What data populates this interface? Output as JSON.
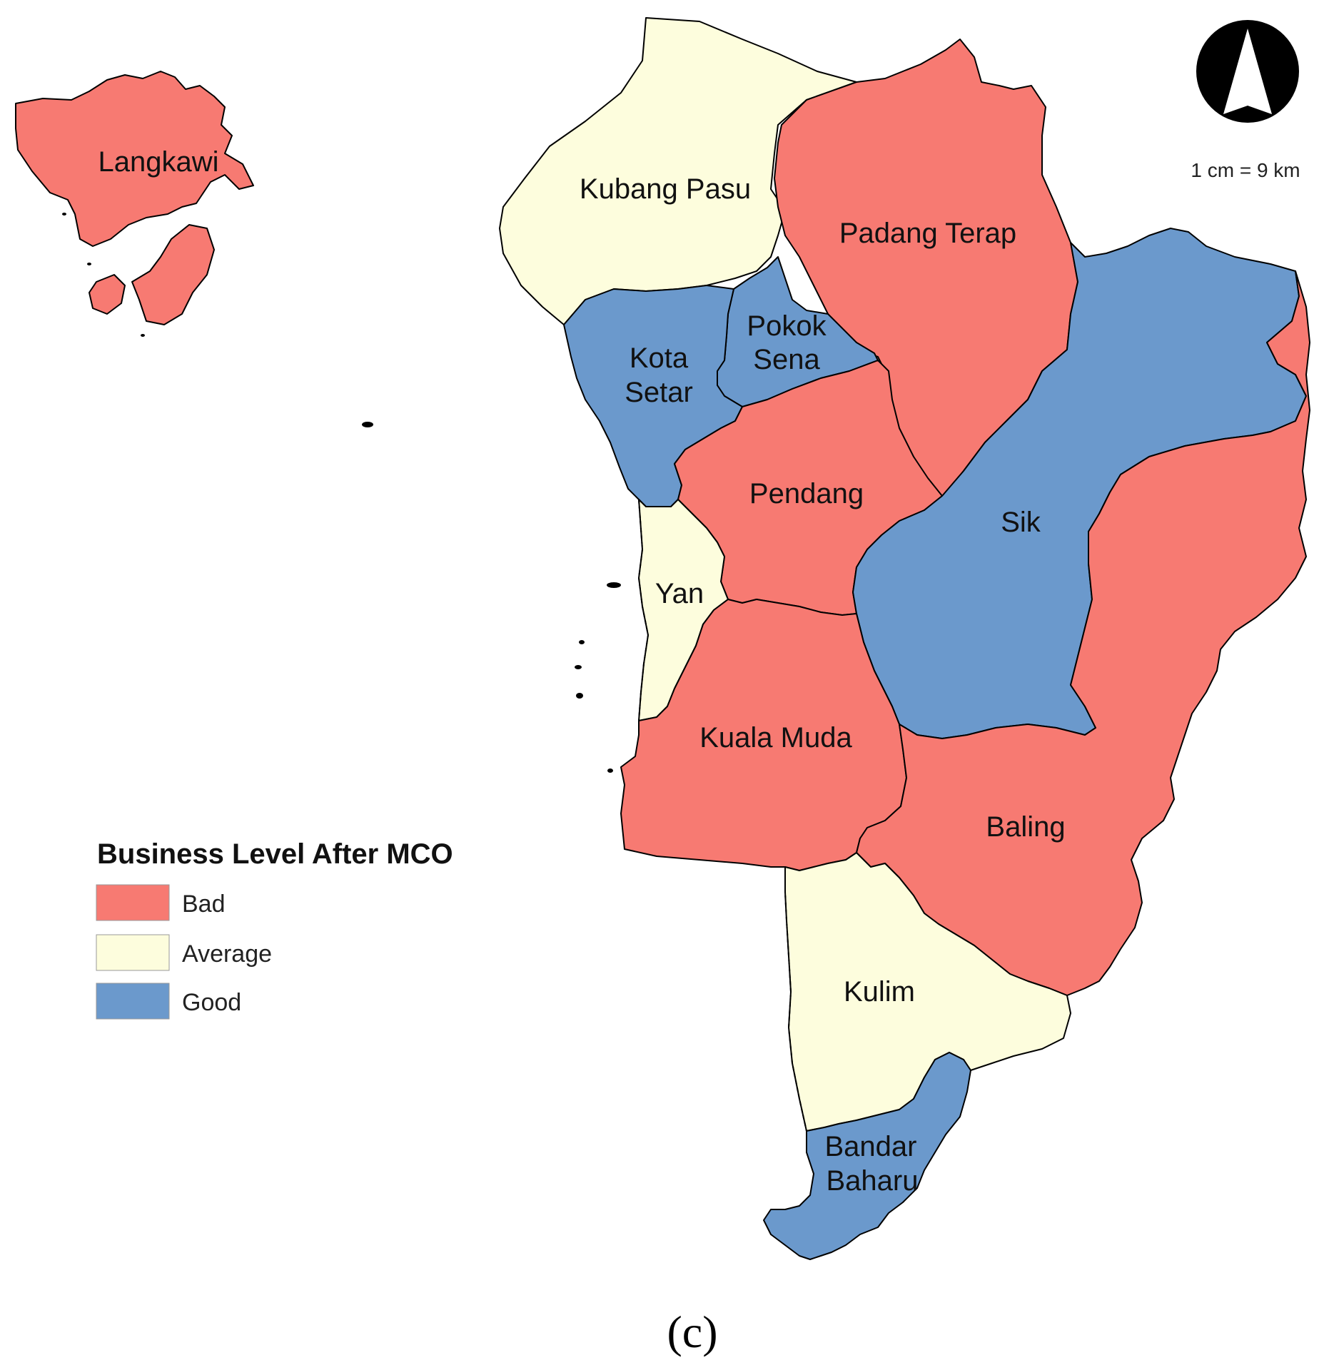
{
  "legend": {
    "title": "Business Level After MCO",
    "items": [
      {
        "key": "bad",
        "label": "Bad",
        "color": "#f77a72"
      },
      {
        "key": "average",
        "label": "Average",
        "color": "#fdfddd"
      },
      {
        "key": "good",
        "label": "Good",
        "color": "#6b99cc"
      }
    ]
  },
  "scale_text": "1 cm = 9 km",
  "panel_label": "(c)",
  "north_arrow_icon": "north-arrow-icon",
  "districts": [
    {
      "id": "langkawi",
      "name_lines": [
        "Langkawi"
      ],
      "level": "bad"
    },
    {
      "id": "kubang-pasu",
      "name_lines": [
        "Kubang Pasu"
      ],
      "level": "average"
    },
    {
      "id": "padang-terap",
      "name_lines": [
        "Padang Terap"
      ],
      "level": "bad"
    },
    {
      "id": "pokok-sena",
      "name_lines": [
        "Pokok",
        "Sena"
      ],
      "level": "good"
    },
    {
      "id": "kota-setar",
      "name_lines": [
        "Kota",
        "Setar"
      ],
      "level": "good"
    },
    {
      "id": "pendang",
      "name_lines": [
        "Pendang"
      ],
      "level": "bad"
    },
    {
      "id": "sik",
      "name_lines": [
        "Sik"
      ],
      "level": "good"
    },
    {
      "id": "yan",
      "name_lines": [
        "Yan"
      ],
      "level": "average"
    },
    {
      "id": "kuala-muda",
      "name_lines": [
        "Kuala Muda"
      ],
      "level": "bad"
    },
    {
      "id": "baling",
      "name_lines": [
        "Baling"
      ],
      "level": "bad"
    },
    {
      "id": "kulim",
      "name_lines": [
        "Kulim"
      ],
      "level": "average"
    },
    {
      "id": "bandar-baharu",
      "name_lines": [
        "Bandar",
        "Baharu"
      ],
      "level": "good"
    }
  ]
}
